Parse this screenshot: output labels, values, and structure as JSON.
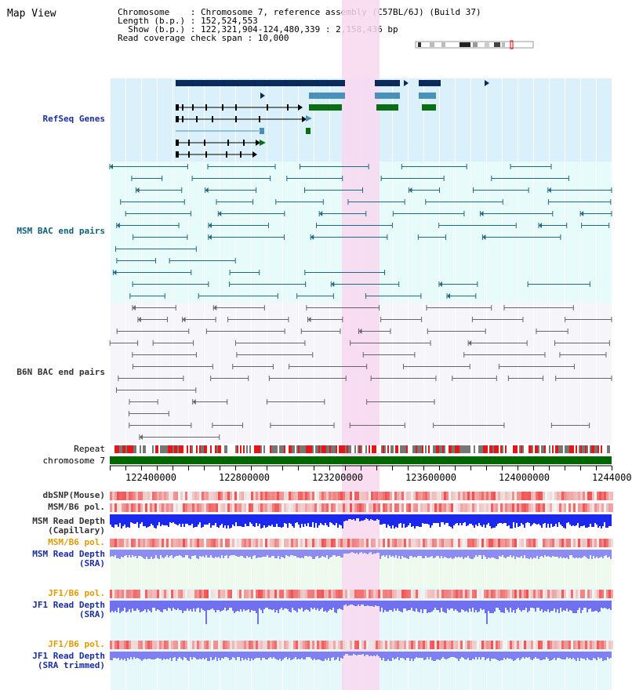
{
  "page": {
    "title": "Map View"
  },
  "info": {
    "chromosome": "Chromosome    : Chromosome 7, reference assembly (C57BL/6J) (Build 37)",
    "length": "Length (b.p.) : 152,524,553",
    "show": "  Show (b.p.) : 122,321,904-124,480,339 : 2,158,436 bp",
    "coverage": "Read coverage check span : 10,000"
  },
  "tracks": [
    {
      "id": "refseq",
      "label": "RefSeq Genes"
    },
    {
      "id": "msm-bac",
      "label": "MSM BAC end pairs"
    },
    {
      "id": "b6n-bac",
      "label": "B6N BAC end pairs"
    },
    {
      "id": "repeat",
      "label": "Repeat"
    },
    {
      "id": "chrom",
      "label": "chromosome 7"
    },
    {
      "id": "dbsnp",
      "label": "dbSNP(Mouse)"
    },
    {
      "id": "msm-pol",
      "label": "MSM/B6 pol."
    },
    {
      "id": "msm-depth-cap",
      "label": "MSM Read Depth\n(Capillary)"
    },
    {
      "id": "msm-pol2",
      "label": "MSM/B6 pol."
    },
    {
      "id": "msm-depth-sra",
      "label": "MSM Read Depth\n(SRA)"
    },
    {
      "id": "jf1-pol",
      "label": "JF1/B6 pol."
    },
    {
      "id": "jf1-depth",
      "label": "JF1 Read Depth\n(SRA)"
    },
    {
      "id": "jf1-pol2",
      "label": "JF1/B6 pol."
    },
    {
      "id": "jf1-depth-trim",
      "label": "JF1 Read Depth\n(SRA trimmed)"
    }
  ],
  "axis": {
    "ticks": [
      "122400000",
      "122800000",
      "123200000",
      "123600000",
      "124000000",
      "1244000"
    ]
  },
  "colors": {
    "refseq_bg": "#daf0fa",
    "bac_bg": "#e8fbfb",
    "b6n_bg": "#f6f6fa",
    "highlight": "#f8d8f0",
    "navy": "#0a2a5c",
    "steel": "#4a90b8",
    "green": "#0a6e12",
    "teal": "#1e6a82",
    "gray": "#666666",
    "repeat_red": "#e01818",
    "repeat_gray": "#777777",
    "depth_blue": "#1a28f0",
    "depth_light": "#7070f0"
  }
}
